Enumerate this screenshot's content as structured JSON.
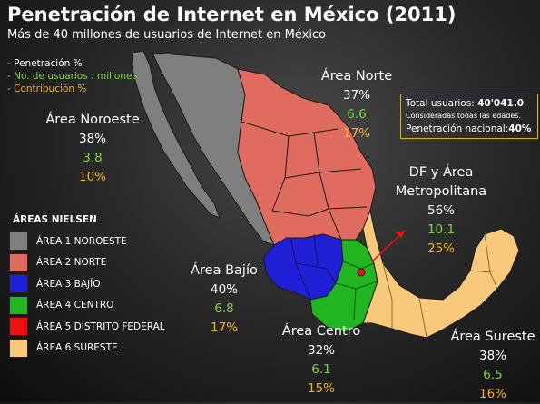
{
  "title": "Penetración de Internet en México (2011)",
  "subtitle": "Más de 40 millones de usuarios de Internet en México",
  "key": {
    "penetration": "- Penetración %",
    "users": "- No. de usuarios : millones",
    "contribution": "- Contribución %"
  },
  "totals": {
    "users_label": "Total usuarios: ",
    "users_value": "40'041.0",
    "note": "Consideradas todas las edades.",
    "national_label": "Penetración nacional:",
    "national_value": "40%"
  },
  "regions": {
    "norte": {
      "name": "Área Norte",
      "pct": "37%",
      "users": "6.6",
      "contrib": "17%"
    },
    "noroeste": {
      "name": "Área Noroeste",
      "pct": "38%",
      "users": "3.8",
      "contrib": "10%"
    },
    "df": {
      "name1": "DF y Área",
      "name2": "Metropolitana",
      "pct": "56%",
      "users": "10.1",
      "contrib": "25%"
    },
    "bajio": {
      "name": "Área Bajío",
      "pct": "40%",
      "users": "6.8",
      "contrib": "17%"
    },
    "centro": {
      "name": "Área Centro",
      "pct": "32%",
      "users": "6.1",
      "contrib": "15%"
    },
    "sureste": {
      "name": "Área Sureste",
      "pct": "38%",
      "users": "6.5",
      "contrib": "16%"
    }
  },
  "nielsen": {
    "title": "ÁREAS NIELSEN",
    "items": [
      {
        "label": "ÁREA 1 NOROESTE",
        "color": "#7f7f7f"
      },
      {
        "label": "ÁREA 2  NORTE",
        "color": "#e06b5f"
      },
      {
        "label": "ÁREA 3 BAJÍO",
        "color": "#1f1fd6"
      },
      {
        "label": "ÁREA 4  CENTRO",
        "color": "#22b522"
      },
      {
        "label": "ÁREA 5  DISTRITO FEDERAL",
        "color": "#ee1111"
      },
      {
        "label": "ÁREA 6 SURESTE",
        "color": "#f8c97a"
      }
    ]
  }
}
